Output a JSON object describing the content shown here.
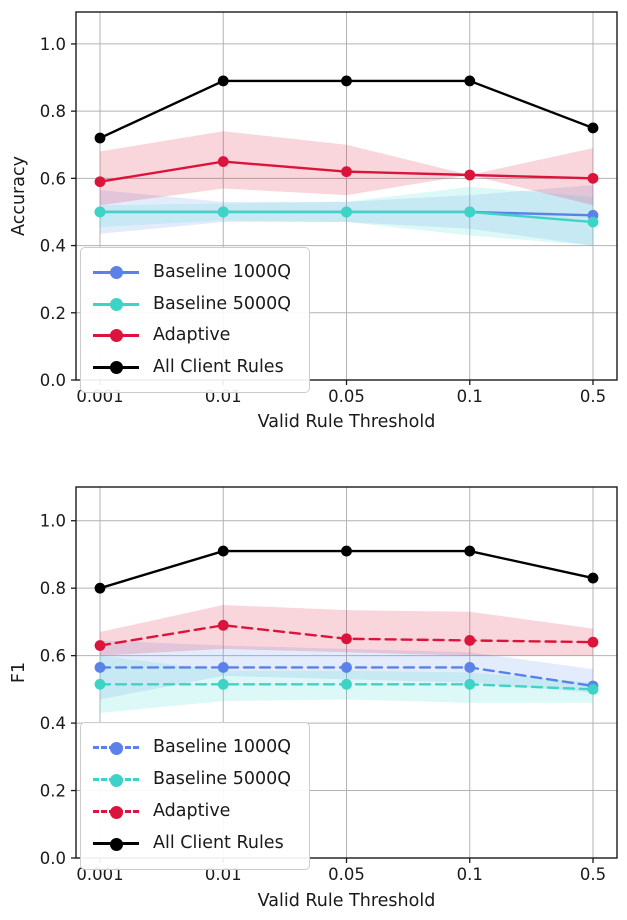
{
  "figure": {
    "background": "#ffffff"
  },
  "chart_data": [
    {
      "type": "line",
      "ylabel": "Accuracy",
      "xlabel": "Valid Rule Threshold",
      "categories": [
        "0.001",
        "0.01",
        "0.05",
        "0.1",
        "0.5"
      ],
      "ytick_labels": [
        "0.0",
        "0.2",
        "0.4",
        "0.6",
        "0.8",
        "1.0"
      ],
      "yticks": [
        0,
        0.2,
        0.4,
        0.6,
        0.8,
        1.0
      ],
      "ylim": [
        0,
        1.095
      ],
      "grid": true,
      "grid_color": "#b3b3b3",
      "legend_position": "lower left",
      "series": [
        {
          "name": "Baseline 1000Q",
          "color": "#5b82e8",
          "band_color": "#6495ed",
          "linestyle": "solid",
          "values": [
            0.5,
            0.5,
            0.5,
            0.5,
            0.49
          ],
          "band_lo": [
            0.435,
            0.47,
            0.47,
            0.45,
            0.4
          ],
          "band_hi": [
            0.565,
            0.53,
            0.53,
            0.55,
            0.58
          ]
        },
        {
          "name": "Baseline 5000Q",
          "color": "#3ed4c5",
          "band_color": "#40e0d0",
          "linestyle": "solid",
          "values": [
            0.5,
            0.5,
            0.5,
            0.5,
            0.47
          ],
          "band_lo": [
            0.455,
            0.475,
            0.47,
            0.43,
            0.4
          ],
          "band_hi": [
            0.52,
            0.525,
            0.53,
            0.575,
            0.545
          ]
        },
        {
          "name": "Adaptive",
          "color": "#dc143c",
          "band_color": "#dc143c",
          "linestyle": "solid",
          "values": [
            0.59,
            0.65,
            0.62,
            0.61,
            0.6
          ],
          "band_lo": [
            0.52,
            0.57,
            0.55,
            0.61,
            0.52
          ],
          "band_hi": [
            0.68,
            0.74,
            0.7,
            0.61,
            0.69
          ]
        },
        {
          "name": "All Client Rules",
          "color": "#000000",
          "linestyle": "solid",
          "values": [
            0.72,
            0.89,
            0.89,
            0.89,
            0.75
          ]
        }
      ]
    },
    {
      "type": "line",
      "ylabel": "F1",
      "xlabel": "Valid Rule Threshold",
      "categories": [
        "0.001",
        "0.01",
        "0.05",
        "0.1",
        "0.5"
      ],
      "ytick_labels": [
        "0.0",
        "0.2",
        "0.4",
        "0.6",
        "0.8",
        "1.0"
      ],
      "yticks": [
        0,
        0.2,
        0.4,
        0.6,
        0.8,
        1.0
      ],
      "ylim": [
        0,
        1.1
      ],
      "grid": true,
      "grid_color": "#b3b3b3",
      "legend_position": "lower left",
      "series": [
        {
          "name": "Baseline 1000Q",
          "color": "#5b82e8",
          "band_color": "#6495ed",
          "linestyle": "dashed",
          "values": [
            0.565,
            0.565,
            0.565,
            0.565,
            0.51
          ],
          "band_lo": [
            0.47,
            0.54,
            0.53,
            0.52,
            0.49
          ],
          "band_hi": [
            0.645,
            0.63,
            0.62,
            0.61,
            0.56
          ]
        },
        {
          "name": "Baseline 5000Q",
          "color": "#3ed4c5",
          "band_color": "#40e0d0",
          "linestyle": "dashed",
          "values": [
            0.515,
            0.515,
            0.515,
            0.515,
            0.5
          ],
          "band_lo": [
            0.43,
            0.465,
            0.47,
            0.46,
            0.46
          ],
          "band_hi": [
            0.6,
            0.555,
            0.555,
            0.55,
            0.52
          ]
        },
        {
          "name": "Adaptive",
          "color": "#dc143c",
          "band_color": "#dc143c",
          "linestyle": "dashed",
          "values": [
            0.63,
            0.69,
            0.65,
            0.645,
            0.64
          ],
          "band_lo": [
            0.6,
            0.62,
            0.61,
            0.6,
            0.6
          ],
          "band_hi": [
            0.67,
            0.75,
            0.735,
            0.73,
            0.68
          ]
        },
        {
          "name": "All Client Rules",
          "color": "#000000",
          "linestyle": "solid",
          "values": [
            0.8,
            0.91,
            0.91,
            0.91,
            0.83
          ]
        }
      ]
    }
  ]
}
